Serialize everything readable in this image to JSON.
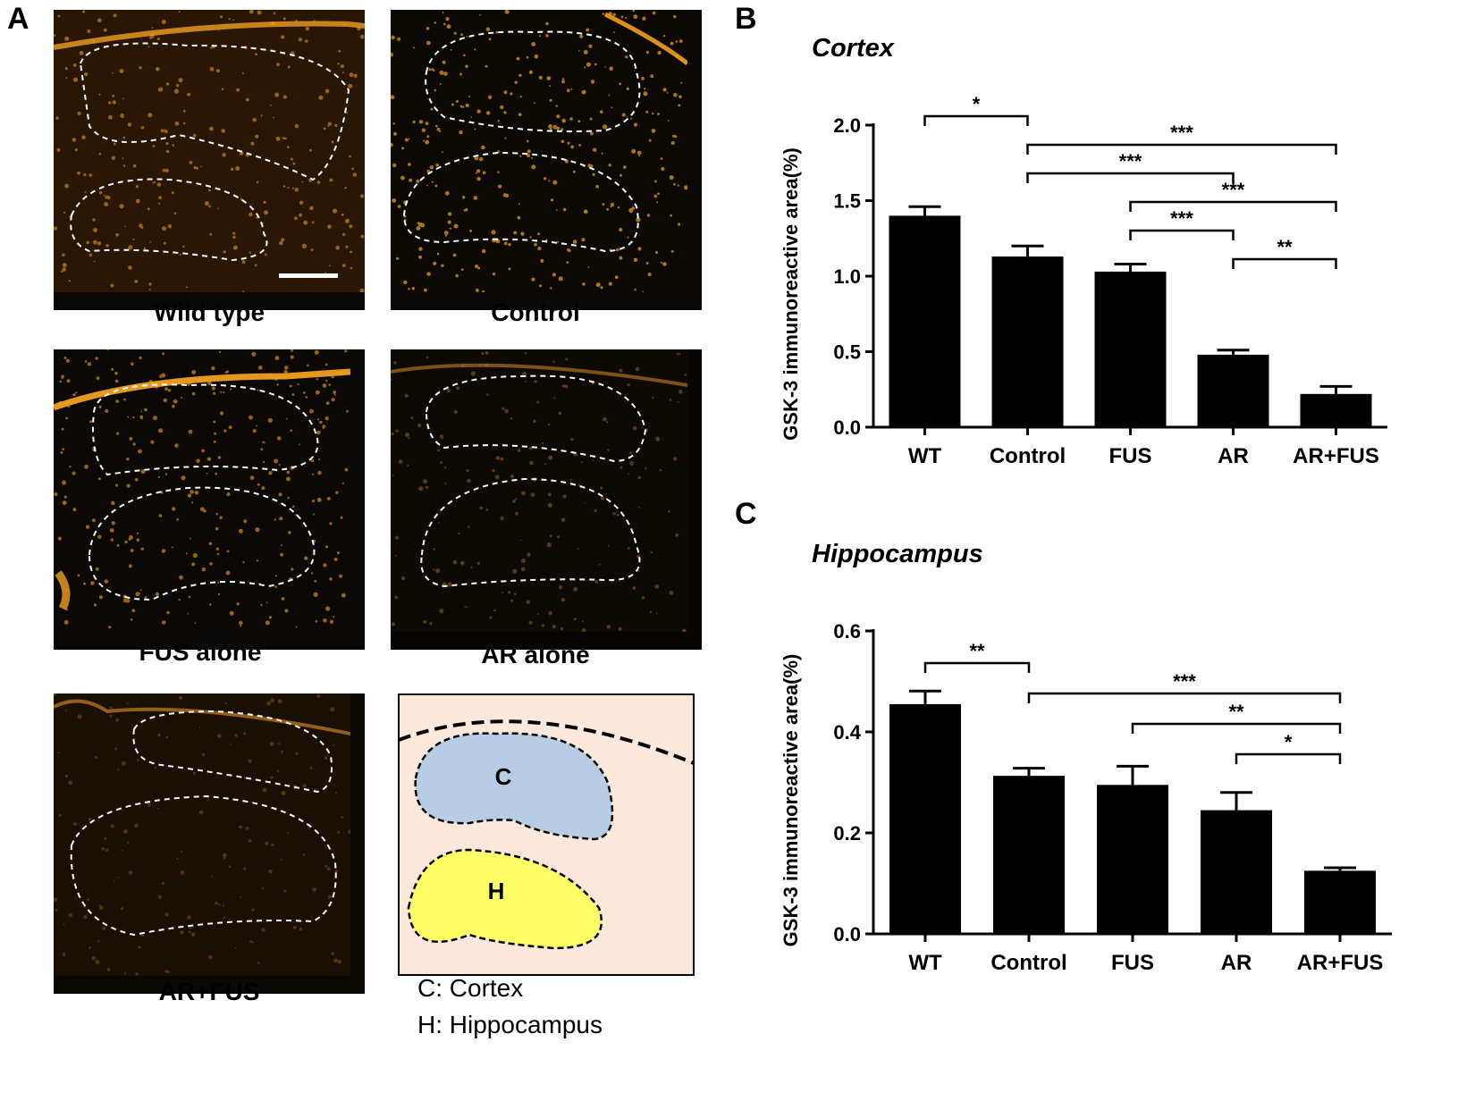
{
  "figure": {
    "panel_labels": {
      "a": "A",
      "b": "B",
      "c": "C"
    },
    "micrograph_captions": [
      "Wild type",
      "Control",
      "FUS alone",
      "AR alone",
      "AR+FUS"
    ],
    "schematic": {
      "cortex_letter": "C",
      "hippocampus_letter": "H",
      "legend": [
        "C: Cortex",
        "H: Hippocampus"
      ],
      "colors": {
        "background": "#fce9dc",
        "cortex": "#b8cce4",
        "hippocampus": "#ffff66"
      }
    },
    "colors": {
      "bar": "#000000",
      "stain": "#f0a020"
    }
  },
  "chart_data": [
    {
      "type": "bar",
      "panel": "B",
      "title": "Cortex",
      "xlabel": "",
      "ylabel": "GSK-3 immunoreactive area(%)",
      "categories": [
        "WT",
        "Control",
        "FUS",
        "AR",
        "AR+FUS"
      ],
      "values": [
        1.4,
        1.13,
        1.03,
        0.48,
        0.22
      ],
      "errors": [
        0.06,
        0.07,
        0.05,
        0.03,
        0.05
      ],
      "ylim": [
        0,
        2.0
      ],
      "yticks": [
        0.0,
        0.5,
        1.0,
        1.5,
        2.0
      ],
      "ytick_labels": [
        "0.0",
        "0.5",
        "1.0",
        "1.5",
        "2.0"
      ],
      "significance": [
        {
          "from": 0,
          "to": 1,
          "label": "*",
          "level": 0
        },
        {
          "from": 1,
          "to": 4,
          "label": "***",
          "level": 1
        },
        {
          "from": 1,
          "to": 3,
          "label": "***",
          "level": 2
        },
        {
          "from": 2,
          "to": 4,
          "label": "***",
          "level": 3
        },
        {
          "from": 2,
          "to": 3,
          "label": "***",
          "level": 4
        },
        {
          "from": 3,
          "to": 4,
          "label": "**",
          "level": 5
        }
      ]
    },
    {
      "type": "bar",
      "panel": "C",
      "title": "Hippocampus",
      "xlabel": "",
      "ylabel": "GSK-3 immunoreactive area(%)",
      "categories": [
        "WT",
        "Control",
        "FUS",
        "AR",
        "AR+FUS"
      ],
      "values": [
        0.455,
        0.313,
        0.295,
        0.245,
        0.125
      ],
      "errors": [
        0.026,
        0.015,
        0.037,
        0.035,
        0.006
      ],
      "ylim": [
        0,
        0.6
      ],
      "yticks": [
        0.0,
        0.2,
        0.4,
        0.6
      ],
      "ytick_labels": [
        "0.0",
        "0.2",
        "0.4",
        "0.6"
      ],
      "significance": [
        {
          "from": 0,
          "to": 1,
          "label": "**",
          "level": 0
        },
        {
          "from": 1,
          "to": 4,
          "label": "***",
          "level": 1
        },
        {
          "from": 2,
          "to": 4,
          "label": "**",
          "level": 2
        },
        {
          "from": 3,
          "to": 4,
          "label": "*",
          "level": 3
        }
      ]
    }
  ]
}
